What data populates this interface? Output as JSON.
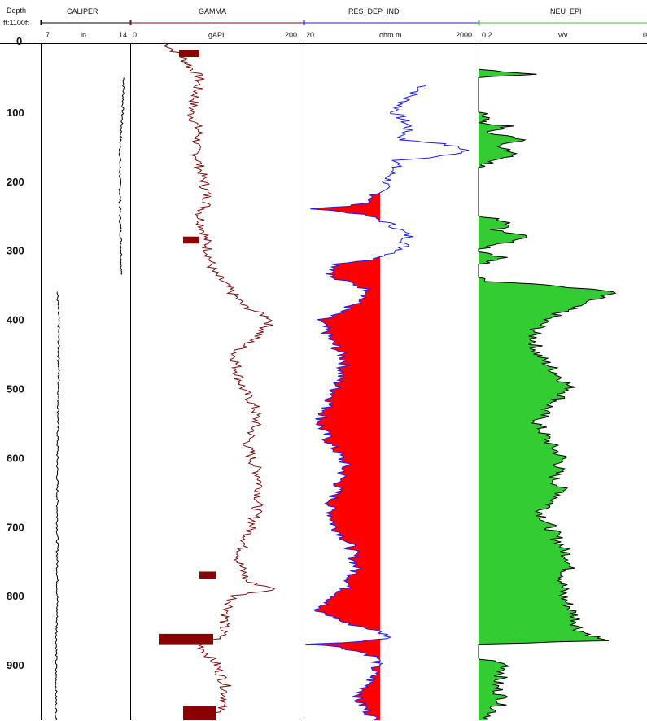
{
  "header": {
    "depth_title": "Depth",
    "scale_label": "ft:1100ft"
  },
  "tracks": [
    {
      "name": "CALIPER",
      "min": "7",
      "unit": "in",
      "max": "14",
      "color": "#000000"
    },
    {
      "name": "GAMMA",
      "min": "0",
      "unit": "gAPI",
      "max": "200",
      "color": "#7b1010"
    },
    {
      "name": "RES_DEP_IND",
      "min": "20",
      "unit": "ohm.m",
      "max": "2000",
      "color": "#1a1aff"
    },
    {
      "name": "NEU_EPI",
      "min": "0.2",
      "unit": "v/v",
      "max": "0",
      "color": "#2ecc2e"
    }
  ],
  "depth_ticks": [
    "100",
    "200",
    "300",
    "400",
    "500",
    "600",
    "700",
    "800",
    "900"
  ],
  "colors": {
    "gamma_fill": "#8b0000",
    "res_fill": "#ff0000",
    "res_curve": "#1a1aff",
    "neu_fill": "#33cc33",
    "curve": "#000000"
  },
  "chart_data": {
    "type": "line",
    "title": "",
    "depth_unit": "ft",
    "depth_range": [
      0,
      980
    ],
    "series": [
      {
        "name": "CALIPER",
        "unit": "in",
        "range": [
          7,
          14
        ],
        "depth": [
          50,
          100,
          150,
          200,
          250,
          300,
          335,
          360,
          400,
          500,
          600,
          700,
          800,
          900,
          980
        ],
        "values": [
          13.5,
          13.4,
          13.2,
          13.2,
          13.2,
          13.3,
          13.3,
          8.3,
          8.4,
          8.4,
          8.3,
          8.3,
          8.3,
          8.2,
          8.2
        ]
      },
      {
        "name": "GAMMA",
        "unit": "gAPI",
        "range": [
          0,
          200
        ],
        "depth": [
          0,
          20,
          50,
          80,
          100,
          130,
          150,
          180,
          200,
          230,
          250,
          270,
          300,
          330,
          350,
          380,
          400,
          420,
          450,
          480,
          500,
          530,
          550,
          580,
          600,
          630,
          650,
          680,
          700,
          730,
          750,
          780,
          790,
          800,
          830,
          860,
          870,
          900,
          930,
          950,
          980
        ],
        "values": [
          40,
          60,
          80,
          75,
          70,
          80,
          75,
          80,
          85,
          90,
          80,
          85,
          90,
          95,
          110,
          130,
          165,
          150,
          120,
          125,
          130,
          145,
          145,
          135,
          140,
          150,
          150,
          145,
          140,
          130,
          125,
          135,
          170,
          120,
          110,
          105,
          80,
          100,
          110,
          110,
          95
        ]
      },
      {
        "name": "RES_DEP_IND",
        "unit": "ohm.m",
        "range": [
          20,
          2000
        ],
        "scale": "log",
        "depth": [
          60,
          80,
          100,
          120,
          140,
          155,
          170,
          190,
          210,
          230,
          240,
          260,
          280,
          300,
          320,
          340,
          360,
          380,
          400,
          430,
          460,
          490,
          520,
          550,
          580,
          610,
          640,
          670,
          700,
          730,
          760,
          790,
          820,
          840,
          860,
          870,
          890,
          920,
          950,
          980
        ],
        "values": [
          500,
          300,
          220,
          320,
          260,
          1500,
          240,
          200,
          160,
          110,
          25,
          180,
          320,
          260,
          50,
          40,
          120,
          70,
          30,
          40,
          60,
          50,
          40,
          30,
          40,
          60,
          50,
          40,
          45,
          70,
          80,
          60,
          25,
          60,
          200,
          25,
          140,
          120,
          80,
          130
        ]
      },
      {
        "name": "NEU_EPI",
        "unit": "v/v",
        "range": [
          0.2,
          0
        ],
        "depth": [
          38,
          45,
          50,
          100,
          110,
          115,
          120,
          130,
          140,
          150,
          160,
          170,
          175,
          180,
          190,
          250,
          260,
          270,
          280,
          290,
          300,
          310,
          320,
          335,
          345,
          350,
          360,
          380,
          400,
          420,
          450,
          480,
          500,
          530,
          550,
          580,
          600,
          630,
          650,
          680,
          700,
          730,
          750,
          780,
          800,
          830,
          850,
          865,
          870,
          890,
          900,
          930,
          950,
          980
        ],
        "values": [
          0.2,
          0.13,
          0.2,
          0.2,
          0.185,
          0.2,
          0.165,
          0.19,
          0.14,
          0.18,
          0.155,
          0.18,
          0.19,
          0.2,
          0.2,
          0.2,
          0.155,
          0.18,
          0.135,
          0.17,
          0.2,
          0.17,
          0.2,
          0.2,
          0.19,
          0.12,
          0.04,
          0.085,
          0.12,
          0.135,
          0.13,
          0.105,
          0.09,
          0.12,
          0.13,
          0.115,
          0.1,
          0.11,
          0.1,
          0.125,
          0.115,
          0.1,
          0.09,
          0.1,
          0.1,
          0.085,
          0.08,
          0.05,
          0.2,
          0.2,
          0.165,
          0.18,
          0.17,
          0.19
        ]
      }
    ]
  }
}
